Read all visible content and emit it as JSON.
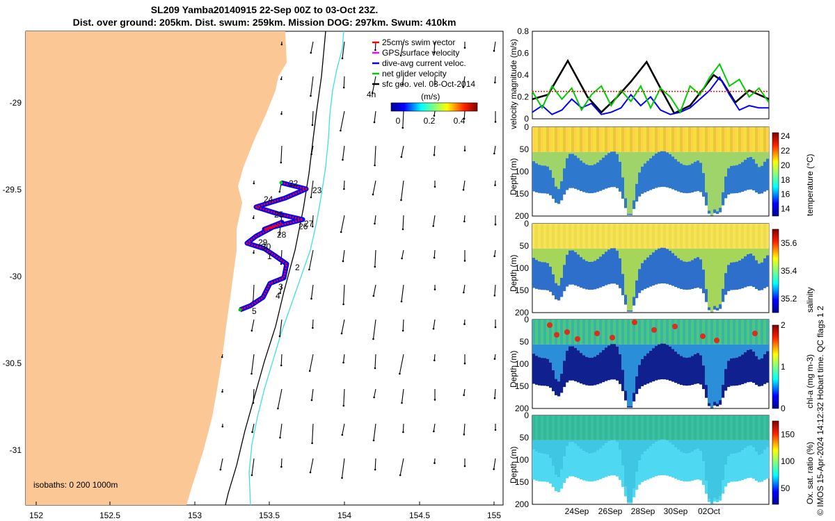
{
  "title_line1": "SL209 Yamba20140915 22-Sep 00Z to 03-Oct 23Z.",
  "title_line2": "Dist. over ground: 205km. Dist. swum: 259km. Mission DOG: 297km. Swum: 410km",
  "map": {
    "lon_ticks": [
      "152",
      "152.5",
      "153",
      "153.5",
      "154",
      "154.5",
      "155"
    ],
    "lat_ticks": [
      "-29",
      "-29.5",
      "-30",
      "-30.5",
      "-31"
    ],
    "isobath_label": "isobaths: 0   200  1000m",
    "day_labels": [
      "22",
      "23",
      "24",
      "25",
      "26",
      "27",
      "28",
      "29",
      "30",
      "1",
      "2",
      "3",
      "4",
      "5"
    ],
    "legend": [
      {
        "label": "25cm/s swim vector",
        "color": "#ff0000"
      },
      {
        "label": "GPS surface velocity",
        "color": "#ff00ff"
      },
      {
        "label": "dive-avg current veloc.",
        "color": "#0000ff"
      },
      {
        "label": "net glider velocity",
        "color": "#00cc00"
      },
      {
        "label": "sfc geo. vel. 03-Oct-2014",
        "color": "#000000"
      }
    ],
    "scale_label": "4h",
    "colorbar_title": "(m/s)",
    "colorbar_ticks": [
      "0",
      "0.2",
      "0.4"
    ]
  },
  "chart_data": [
    {
      "type": "line",
      "title": "",
      "xlabel": "",
      "ylabel": "velocity magnitude (m/s)",
      "ylim": [
        0,
        0.8
      ],
      "yticks": [
        "0",
        "0.2",
        "0.4",
        "0.6",
        "0.8"
      ],
      "xlim_days": [
        0,
        12
      ],
      "series": [
        {
          "name": "sfc geo. vel.",
          "color": "#000000",
          "x": [
            0,
            0.8,
            1.8,
            2.8,
            3.5,
            4.2,
            5.0,
            5.8,
            6.5,
            7.2,
            8.0,
            8.7,
            9.2,
            9.6,
            10.3,
            11.0,
            12.0
          ],
          "values": [
            0.18,
            0.22,
            0.53,
            0.2,
            0.06,
            0.18,
            0.34,
            0.52,
            0.28,
            0.05,
            0.12,
            0.28,
            0.4,
            0.35,
            0.15,
            0.26,
            0.18
          ]
        },
        {
          "name": "dive-avg current veloc.",
          "color": "#0000ff",
          "x": [
            0,
            0.5,
            1.0,
            1.5,
            2.0,
            2.5,
            3.0,
            3.5,
            4.0,
            4.5,
            5.0,
            5.5,
            6.0,
            6.5,
            7.0,
            7.5,
            8.0,
            8.5,
            9.0,
            9.5,
            10.0,
            10.5,
            11.0,
            11.5,
            12.0
          ],
          "values": [
            0.06,
            0.12,
            0.04,
            0.08,
            0.18,
            0.1,
            0.14,
            0.04,
            0.06,
            0.1,
            0.22,
            0.12,
            0.2,
            0.08,
            0.04,
            0.06,
            0.1,
            0.18,
            0.26,
            0.38,
            0.22,
            0.08,
            0.12,
            0.1,
            0.1
          ]
        },
        {
          "name": "net glider velocity",
          "color": "#00cc00",
          "x": [
            0,
            0.5,
            1.0,
            1.5,
            2.0,
            2.5,
            3.0,
            3.5,
            4.0,
            4.5,
            5.0,
            5.5,
            6.0,
            6.5,
            7.0,
            7.5,
            8.0,
            8.5,
            9.0,
            9.5,
            10.0,
            10.5,
            11.0,
            11.5,
            12.0
          ],
          "values": [
            0.25,
            0.1,
            0.3,
            0.18,
            0.28,
            0.08,
            0.22,
            0.3,
            0.12,
            0.26,
            0.16,
            0.3,
            0.1,
            0.28,
            0.2,
            0.06,
            0.3,
            0.22,
            0.38,
            0.5,
            0.3,
            0.36,
            0.2,
            0.28,
            0.15
          ]
        },
        {
          "name": "25cm/s swim vector",
          "color": "#ff0000",
          "x": [
            0,
            12
          ],
          "values": [
            0.25,
            0.25
          ]
        }
      ]
    },
    {
      "type": "heatmap",
      "ylabel": "Depth (m)",
      "cbar_label": "temperature (°C)",
      "yticks": [
        "0",
        "50",
        "100",
        "150",
        "200"
      ],
      "cbar_ticks": [
        "14",
        "16",
        "18",
        "20",
        "22",
        "24"
      ],
      "cbar_range": [
        13,
        24.5
      ],
      "colors_top": [
        "#ffd24a",
        "#f5e03a",
        "#e9c63c"
      ],
      "colors_mid": "#9ed46a",
      "colors_deep": "#2e78ce"
    },
    {
      "type": "heatmap",
      "ylabel": "Depth (m)",
      "cbar_label": "salinity",
      "yticks": [
        "0",
        "50",
        "100",
        "150",
        "200"
      ],
      "cbar_ticks": [
        "35.2",
        "35.4",
        "35.6"
      ],
      "cbar_range": [
        35.1,
        35.7
      ],
      "colors_top": [
        "#f7e35a",
        "#f0dc48"
      ],
      "colors_mid": "#a5d65a",
      "colors_deep": "#2e6fcb"
    },
    {
      "type": "heatmap",
      "ylabel": "Depth (m)",
      "cbar_label": "chl-a (mg m-3)",
      "yticks": [
        "0",
        "50",
        "100",
        "150",
        "200"
      ],
      "cbar_ticks": [
        "0",
        "1",
        "2"
      ],
      "cbar_range": [
        0,
        2
      ],
      "colors_top": [
        "#39b5a8",
        "#4fc67e"
      ],
      "colors_mid": "#2a8fd8",
      "colors_deep": "#10218f"
    },
    {
      "type": "heatmap",
      "ylabel": "Depth (m)",
      "cbar_label": "Ox. sat. ratio (%)",
      "yticks": [
        "0",
        "50",
        "100",
        "150",
        "200"
      ],
      "cbar_ticks": [
        "50",
        "100",
        "150"
      ],
      "cbar_range": [
        20,
        175
      ],
      "colors_top": [
        "#33b89a",
        "#3cbfa1"
      ],
      "colors_mid": "#3fc6e2",
      "colors_deep": "#4fd8f2"
    }
  ],
  "x_date_ticks": [
    "24Sep",
    "26Sep",
    "28Sep",
    "30Sep",
    "02Oct"
  ],
  "side_note": "© IMOS 15-Apr-2024 14:12:32 Hobart time. QC flags 1  2",
  "colors": {
    "land": "#fbc795",
    "swim": "#ff0000",
    "current": "#0000ff",
    "isobath_200": "#000000",
    "isobath_1000": "#3ee0e0"
  }
}
